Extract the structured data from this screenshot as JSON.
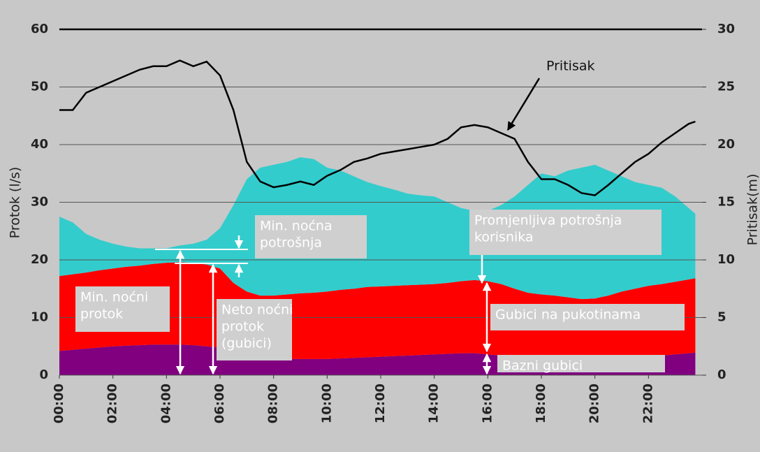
{
  "chart_data": {
    "type": "area",
    "ylabel": "Protok (l/s)",
    "y2label": "Pritisak(m)",
    "x": [
      0,
      0.5,
      1,
      1.5,
      2,
      2.5,
      3,
      3.5,
      4,
      4.5,
      5,
      5.5,
      6,
      6.5,
      7,
      7.5,
      8,
      8.5,
      9,
      9.5,
      10,
      10.5,
      11,
      11.5,
      12,
      12.5,
      13,
      13.5,
      14,
      14.5,
      15,
      15.5,
      16,
      16.5,
      17,
      17.5,
      18,
      18.5,
      19,
      19.5,
      20,
      20.5,
      21,
      21.5,
      22,
      22.5,
      23,
      23.5,
      23.75
    ],
    "xlim": [
      0,
      24
    ],
    "xticks": [
      {
        "value": 0,
        "label": "00:00"
      },
      {
        "value": 2,
        "label": "02:00"
      },
      {
        "value": 4,
        "label": "04:00"
      },
      {
        "value": 6,
        "label": "06:00"
      },
      {
        "value": 8,
        "label": "08:00"
      },
      {
        "value": 10,
        "label": "10:00"
      },
      {
        "value": 12,
        "label": "12:00"
      },
      {
        "value": 14,
        "label": "14:00"
      },
      {
        "value": 16,
        "label": "16:00"
      },
      {
        "value": 18,
        "label": "18:00"
      },
      {
        "value": 20,
        "label": "20:00"
      },
      {
        "value": 22,
        "label": "22:00"
      }
    ],
    "ylim": [
      0,
      60
    ],
    "yticks": [
      0,
      10,
      20,
      30,
      40,
      50,
      60
    ],
    "y2lim": [
      0,
      30
    ],
    "y2ticks": [
      0,
      5,
      10,
      15,
      20,
      25,
      30
    ],
    "grid": true,
    "series": [
      {
        "color": "#800080",
        "stacked": true,
        "values": [
          4.2,
          4.4,
          4.6,
          4.8,
          5.0,
          5.1,
          5.2,
          5.3,
          5.3,
          5.3,
          5.2,
          5.0,
          4.8,
          4.0,
          3.5,
          3.2,
          3.0,
          2.8,
          2.8,
          2.8,
          2.8,
          2.9,
          3.0,
          3.1,
          3.2,
          3.3,
          3.4,
          3.5,
          3.6,
          3.7,
          3.8,
          3.8,
          3.6,
          3.4,
          3.0,
          2.6,
          2.4,
          2.2,
          2.0,
          2.0,
          2.1,
          2.3,
          2.6,
          2.9,
          3.2,
          3.4,
          3.6,
          3.8,
          3.9
        ]
      },
      {
        "color": "#ff0000",
        "stacked": true,
        "values": [
          13.0,
          13.1,
          13.2,
          13.4,
          13.5,
          13.7,
          13.8,
          14.0,
          14.2,
          14.3,
          14.3,
          14.2,
          13.7,
          12.0,
          11.0,
          10.6,
          10.8,
          11.2,
          11.4,
          11.5,
          11.7,
          11.9,
          12.0,
          12.2,
          12.2,
          12.2,
          12.2,
          12.2,
          12.2,
          12.3,
          12.5,
          12.7,
          12.7,
          12.4,
          12.0,
          11.7,
          11.6,
          11.6,
          11.5,
          11.2,
          11.2,
          11.5,
          11.9,
          12.1,
          12.3,
          12.4,
          12.6,
          12.8,
          12.9
        ]
      },
      {
        "color": "#33cccc",
        "stacked": true,
        "values": [
          10.3,
          9.0,
          6.7,
          5.3,
          4.3,
          3.5,
          3.0,
          2.7,
          2.5,
          2.9,
          3.3,
          4.3,
          7.0,
          13.5,
          19.5,
          22.2,
          22.7,
          23.0,
          23.6,
          23.2,
          21.5,
          20.7,
          19.5,
          18.2,
          17.4,
          16.7,
          15.9,
          15.5,
          15.2,
          14.0,
          12.7,
          12.0,
          12.2,
          13.7,
          16.0,
          18.7,
          21.0,
          20.7,
          22.0,
          22.8,
          23.2,
          21.7,
          20.0,
          18.5,
          17.5,
          16.7,
          14.8,
          12.4,
          11.2
        ]
      },
      {
        "color": "#000000",
        "type": "line",
        "axis": "y2",
        "values": [
          23,
          23,
          24.5,
          25,
          25.5,
          26,
          26.5,
          26.8,
          26.8,
          27.3,
          26.8,
          27.2,
          26,
          23,
          18.5,
          16.8,
          16.3,
          16.5,
          16.8,
          16.5,
          17.3,
          17.8,
          18.5,
          18.8,
          19.2,
          19.4,
          19.6,
          19.8,
          20,
          20.5,
          21.5,
          21.7,
          21.5,
          21,
          20.5,
          18.5,
          17,
          17,
          16.5,
          15.8,
          15.6,
          16.5,
          17.5,
          18.5,
          19.2,
          20.2,
          21,
          21.8,
          22
        ]
      }
    ],
    "annotations": [
      {
        "lines": [
          "Pritisak"
        ]
      },
      {
        "lines": [
          "Min. noćna",
          "potrošnja"
        ]
      },
      {
        "lines": [
          "Min. noćni",
          "protok"
        ]
      },
      {
        "lines": [
          "Neto noćni",
          "protok",
          "(gubici)"
        ]
      },
      {
        "lines": [
          "Promjenljiva potrošnja",
          "korisnika"
        ]
      },
      {
        "lines": [
          "Gubici na pukotinama"
        ]
      },
      {
        "lines": [
          "Bazni gubici"
        ]
      }
    ]
  }
}
